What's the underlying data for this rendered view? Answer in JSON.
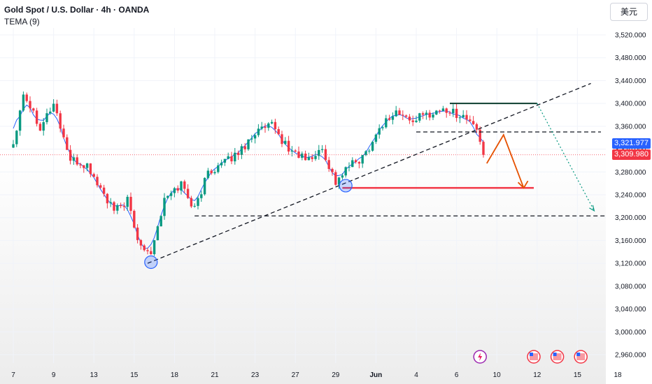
{
  "header": {
    "title": "Gold Spot / U.S. Dollar · 4h · OANDA",
    "indicator": "TEMA (9)"
  },
  "currency_button": "美元",
  "price_tags": {
    "tema": "3,321.977",
    "last": "3,309.980",
    "tema_color": "#2962ff",
    "last_color": "#f23645"
  },
  "colors": {
    "up": "#089981",
    "down": "#f23645",
    "tema_line": "#2962ff",
    "trendline": "#131722",
    "target_arrow": "#e65100",
    "support_line": "#f23645",
    "projection": "#089981",
    "resistance_cap": "#0b3d2e"
  },
  "chart_data": {
    "type": "candlestick",
    "title": "Gold Spot / U.S. Dollar",
    "timeframe": "4h",
    "source": "OANDA",
    "ylim": [
      2940,
      3560
    ],
    "yticks": [
      2960,
      3000,
      3040,
      3080,
      3120,
      3160,
      3200,
      3240,
      3280,
      3320,
      3360,
      3400,
      3440,
      3480,
      3520
    ],
    "ytick_labels": [
      "2,960.000",
      "3,000.000",
      "3,040.000",
      "3,080.000",
      "3,120.000",
      "3,160.000",
      "3,200.000",
      "3,240.000",
      "3,280.000",
      "3,320.000",
      "3,360.000",
      "3,400.000",
      "3,440.000",
      "3,480.000",
      "3,520.000"
    ],
    "xtick_labels": [
      "7",
      "9",
      "13",
      "15",
      "18",
      "21",
      "23",
      "27",
      "29",
      "Jun",
      "4",
      "6",
      "10",
      "12",
      "15",
      "18"
    ],
    "xticks_bar": [
      0,
      12,
      24,
      36,
      48,
      60,
      72,
      84,
      96,
      108,
      120,
      132,
      144,
      156,
      168,
      180
    ],
    "price_path": [
      [
        0,
        3330
      ],
      [
        3,
        3420
      ],
      [
        8,
        3360
      ],
      [
        12,
        3400
      ],
      [
        17,
        3300
      ],
      [
        22,
        3290
      ],
      [
        30,
        3210
      ],
      [
        34,
        3230
      ],
      [
        37,
        3160
      ],
      [
        41,
        3140
      ],
      [
        45,
        3230
      ],
      [
        50,
        3260
      ],
      [
        54,
        3215
      ],
      [
        58,
        3280
      ],
      [
        64,
        3300
      ],
      [
        68,
        3320
      ],
      [
        72,
        3350
      ],
      [
        77,
        3360
      ],
      [
        82,
        3320
      ],
      [
        88,
        3300
      ],
      [
        92,
        3320
      ],
      [
        96,
        3262
      ],
      [
        100,
        3290
      ],
      [
        104,
        3305
      ],
      [
        110,
        3365
      ],
      [
        114,
        3385
      ],
      [
        118,
        3370
      ],
      [
        123,
        3380
      ],
      [
        128,
        3390
      ],
      [
        133,
        3380
      ],
      [
        137,
        3365
      ],
      [
        139,
        3330
      ],
      [
        140,
        3310
      ]
    ],
    "tema": {
      "name": "TEMA (9)",
      "last": 3321.977
    },
    "last_price": 3309.98,
    "horizontal_levels": [
      {
        "price": 3400,
        "from_bar": 130,
        "to_bar": 156,
        "style": "solid"
      },
      {
        "price": 3350,
        "from_bar": 120,
        "to_bar": 175,
        "style": "dashed"
      },
      {
        "price": 3252,
        "from_bar": 98,
        "to_bar": 155,
        "style": "solid"
      },
      {
        "price": 3203,
        "from_bar": 54,
        "to_bar": 185,
        "style": "dashed"
      }
    ],
    "trendline": {
      "from": [
        40,
        3120
      ],
      "to": [
        172,
        3435
      ]
    },
    "target_arrow": [
      [
        141,
        3295
      ],
      [
        146,
        3345
      ],
      [
        152,
        3252
      ]
    ],
    "projection": [
      [
        156,
        3400
      ],
      [
        173,
        3212
      ]
    ],
    "circled_pivots": [
      [
        41,
        3122
      ],
      [
        99,
        3256
      ]
    ],
    "events": [
      {
        "bar": 139,
        "icon": "lightning-icon"
      },
      {
        "bar": 155,
        "icon": "us-flag-icon"
      },
      {
        "bar": 162,
        "icon": "us-flag-icon"
      },
      {
        "bar": 169,
        "icon": "us-flag-icon"
      }
    ]
  }
}
